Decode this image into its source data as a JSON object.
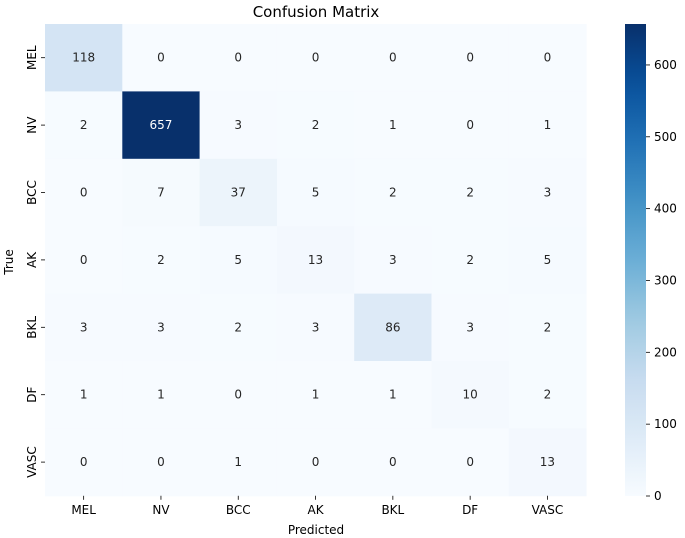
{
  "chart_data": {
    "type": "heatmap",
    "title": "Confusion Matrix",
    "xlabel": "Predicted",
    "ylabel": "True",
    "x_categories": [
      "MEL",
      "NV",
      "BCC",
      "AK",
      "BKL",
      "DF",
      "VASC"
    ],
    "y_categories": [
      "MEL",
      "NV",
      "BCC",
      "AK",
      "BKL",
      "DF",
      "VASC"
    ],
    "values": [
      [
        118,
        0,
        0,
        0,
        0,
        0,
        0
      ],
      [
        2,
        657,
        3,
        2,
        1,
        0,
        1
      ],
      [
        0,
        7,
        37,
        5,
        2,
        2,
        3
      ],
      [
        0,
        2,
        5,
        13,
        3,
        2,
        5
      ],
      [
        3,
        3,
        2,
        3,
        86,
        3,
        2
      ],
      [
        1,
        1,
        0,
        1,
        1,
        10,
        2
      ],
      [
        0,
        0,
        1,
        0,
        0,
        0,
        13
      ]
    ],
    "colormap": "Blues",
    "color_range": [
      0,
      657
    ],
    "colorbar_ticks": [
      0,
      100,
      200,
      300,
      400,
      500,
      600
    ],
    "colors": {
      "low": "#f7fbff",
      "high": "#08306b"
    }
  }
}
